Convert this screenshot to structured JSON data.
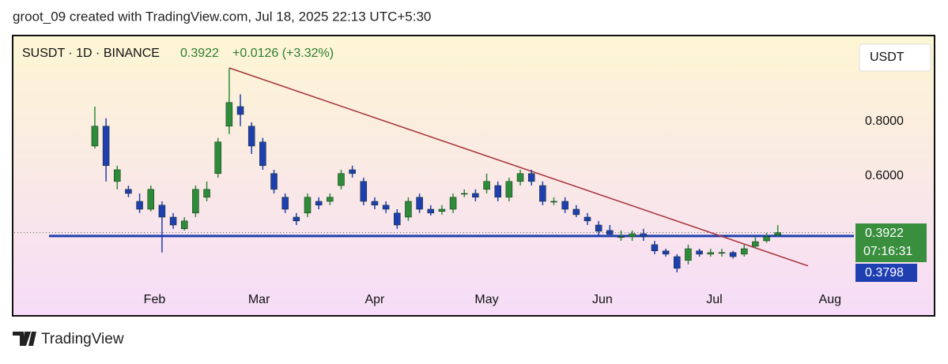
{
  "header": {
    "text": "groot_09 created with TradingView.com, Jul 18, 2025 22:13 UTC+5:30"
  },
  "footer": {
    "brand": "TradingView"
  },
  "chart_data": {
    "type": "candlestick",
    "title": "SUSDT · 1D · BINANCE",
    "last_price": 0.3922,
    "change": "+0.0126 (+3.32%)",
    "countdown": "07:16:31",
    "currency_button": "USDT",
    "up_color": "#2e8b3a",
    "down_color": "#1f3fb0",
    "support_level": 0.3798,
    "support_color": "#1f3fb0",
    "trendline": {
      "x": [
        36,
        191.1
      ],
      "y": [
        0.997,
        0.27
      ],
      "color": "#a8343a"
    },
    "xlim": [
      -21.6,
      203.4
    ],
    "xticks": [
      {
        "value": 16,
        "label": "Feb"
      },
      {
        "value": 44,
        "label": "Mar"
      },
      {
        "value": 75,
        "label": "Apr"
      },
      {
        "value": 105,
        "label": "May"
      },
      {
        "value": 136,
        "label": "Jun"
      },
      {
        "value": 166,
        "label": "Jul"
      },
      {
        "value": 197,
        "label": "Aug"
      }
    ],
    "ylim": [
      0.188,
      1.113
    ],
    "yticks": [
      {
        "value": 0.8,
        "label": "0.8000"
      },
      {
        "value": 0.6,
        "label": "0.6000"
      }
    ],
    "x": [
      0,
      3,
      6,
      9,
      12,
      15,
      18,
      21,
      24,
      27,
      30,
      33,
      36,
      39,
      42,
      45,
      48,
      51,
      54,
      57,
      60,
      63,
      66,
      69,
      72,
      75,
      78,
      81,
      84,
      87,
      90,
      93,
      96,
      99,
      102,
      105,
      108,
      111,
      114,
      117,
      120,
      123,
      126,
      129,
      132,
      135,
      138,
      141,
      144,
      147,
      150,
      153,
      156,
      159,
      162,
      165,
      168,
      171,
      174,
      177,
      180,
      183
    ],
    "open": [
      0.71,
      0.783,
      0.58,
      0.551,
      0.507,
      0.478,
      0.493,
      0.449,
      0.406,
      0.464,
      0.522,
      0.609,
      0.783,
      0.855,
      0.783,
      0.725,
      0.609,
      0.522,
      0.449,
      0.464,
      0.507,
      0.507,
      0.565,
      0.623,
      0.58,
      0.507,
      0.493,
      0.464,
      0.449,
      0.522,
      0.478,
      0.47,
      0.478,
      0.536,
      0.536,
      0.551,
      0.565,
      0.522,
      0.58,
      0.609,
      0.565,
      0.507,
      0.507,
      0.478,
      0.449,
      0.42,
      0.4,
      0.377,
      0.377,
      0.388,
      0.348,
      0.325,
      0.304,
      0.29,
      0.325,
      0.313,
      0.319,
      0.319,
      0.313,
      0.342,
      0.362,
      0.383
    ],
    "high": [
      0.855,
      0.812,
      0.638,
      0.565,
      0.536,
      0.565,
      0.507,
      0.464,
      0.449,
      0.565,
      0.58,
      0.74,
      0.997,
      0.9,
      0.797,
      0.74,
      0.623,
      0.536,
      0.464,
      0.536,
      0.522,
      0.536,
      0.623,
      0.638,
      0.594,
      0.522,
      0.507,
      0.478,
      0.522,
      0.536,
      0.493,
      0.493,
      0.536,
      0.551,
      0.551,
      0.609,
      0.58,
      0.594,
      0.623,
      0.623,
      0.58,
      0.522,
      0.522,
      0.493,
      0.464,
      0.435,
      0.42,
      0.4,
      0.4,
      0.406,
      0.362,
      0.333,
      0.313,
      0.348,
      0.333,
      0.333,
      0.333,
      0.325,
      0.348,
      0.377,
      0.391,
      0.42
    ],
    "low": [
      0.701,
      0.58,
      0.551,
      0.522,
      0.464,
      0.47,
      0.319,
      0.406,
      0.4,
      0.449,
      0.507,
      0.594,
      0.754,
      0.783,
      0.681,
      0.623,
      0.536,
      0.464,
      0.42,
      0.449,
      0.478,
      0.493,
      0.551,
      0.594,
      0.493,
      0.478,
      0.464,
      0.406,
      0.435,
      0.464,
      0.455,
      0.458,
      0.464,
      0.522,
      0.507,
      0.536,
      0.507,
      0.507,
      0.565,
      0.565,
      0.493,
      0.493,
      0.464,
      0.449,
      0.42,
      0.383,
      0.377,
      0.362,
      0.362,
      0.362,
      0.313,
      0.304,
      0.246,
      0.275,
      0.304,
      0.304,
      0.304,
      0.297,
      0.304,
      0.333,
      0.355,
      0.377
    ],
    "close": [
      0.783,
      0.638,
      0.623,
      0.536,
      0.478,
      0.551,
      0.449,
      0.42,
      0.435,
      0.551,
      0.551,
      0.725,
      0.87,
      0.826,
      0.71,
      0.638,
      0.551,
      0.478,
      0.435,
      0.522,
      0.493,
      0.522,
      0.609,
      0.609,
      0.507,
      0.493,
      0.478,
      0.42,
      0.507,
      0.478,
      0.464,
      0.478,
      0.522,
      0.536,
      0.522,
      0.58,
      0.522,
      0.58,
      0.609,
      0.58,
      0.507,
      0.507,
      0.478,
      0.458,
      0.435,
      0.397,
      0.386,
      0.377,
      0.388,
      0.377,
      0.325,
      0.313,
      0.261,
      0.333,
      0.313,
      0.319,
      0.319,
      0.304,
      0.333,
      0.359,
      0.377,
      0.392
    ]
  }
}
